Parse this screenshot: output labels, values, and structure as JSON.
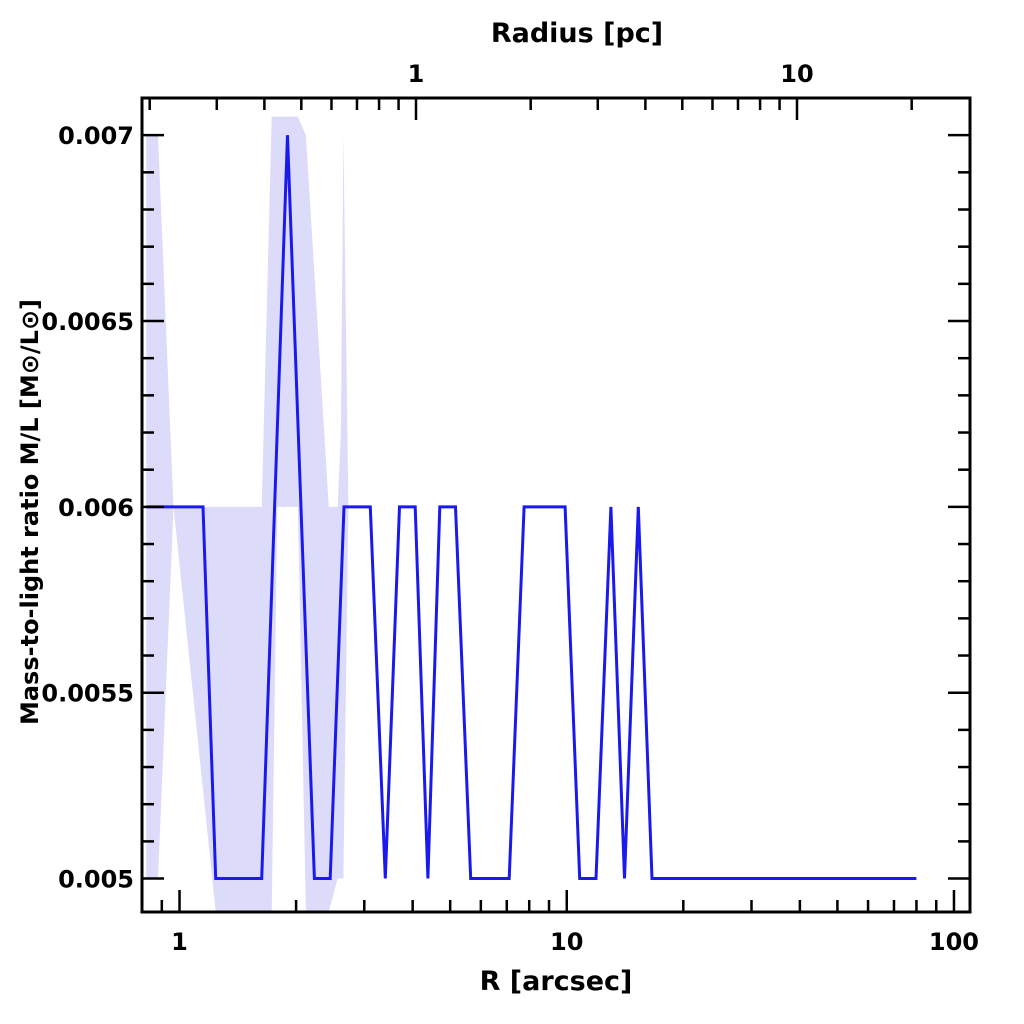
{
  "chart_data": {
    "type": "line",
    "xlabel": "R [arcsec]",
    "ylabel": "Mass-to-light ratio M/L [M⊙/L⊙]",
    "top_xlabel": "Radius [pc]",
    "xscale": "log",
    "xlim": [
      0.8,
      110
    ],
    "ylim": [
      0.00491,
      0.0071
    ],
    "x_ticks": [
      1,
      10,
      100
    ],
    "x_tick_labels": [
      "1",
      "10",
      "100"
    ],
    "top_x_ticks": [
      1,
      10
    ],
    "top_x_tick_labels": [
      "1",
      "10"
    ],
    "y_ticks": [
      0.005,
      0.0055,
      0.006,
      0.0065,
      0.007
    ],
    "y_tick_labels": [
      "0.005",
      "0.0055",
      "0.006",
      "0.0065",
      "0.007"
    ],
    "grid": false,
    "colors": {
      "line": "#1a1aee",
      "band": "#dcdcfa",
      "axes": "#000000"
    },
    "series": [
      {
        "x": [
          0.82,
          1.15,
          1.24,
          1.63,
          1.9,
          2.23,
          2.45,
          2.66,
          3.11,
          3.4,
          3.7,
          4.06,
          4.38,
          4.7,
          5.16,
          5.65,
          7.1,
          7.76,
          9.9,
          10.8,
          11.9,
          13.0,
          14.1,
          15.3,
          16.6,
          80.0
        ],
        "y": [
          0.006,
          0.006,
          0.005,
          0.005,
          0.007,
          0.005,
          0.005,
          0.006,
          0.006,
          0.005,
          0.006,
          0.006,
          0.005,
          0.006,
          0.006,
          0.005,
          0.005,
          0.006,
          0.006,
          0.005,
          0.005,
          0.006,
          0.005,
          0.006,
          0.005,
          0.005
        ]
      }
    ],
    "uncertainty_band": {
      "x": [
        0.82,
        0.88,
        0.965,
        1.24,
        1.63,
        1.73,
        1.79,
        2.02,
        2.12,
        2.43,
        2.56,
        2.61,
        2.65,
        2.73
      ],
      "upper": [
        0.007,
        0.007,
        0.006,
        0.006,
        0.006,
        0.00705,
        0.00705,
        0.00705,
        0.007,
        0.006,
        0.006,
        0.0062,
        0.007,
        0.006
      ],
      "lower": [
        0.005,
        0.005,
        0.006,
        0.00491,
        0.00491,
        0.00491,
        0.006,
        0.006,
        0.00491,
        0.00491,
        0.005,
        0.005,
        0.005,
        0.006
      ]
    }
  }
}
